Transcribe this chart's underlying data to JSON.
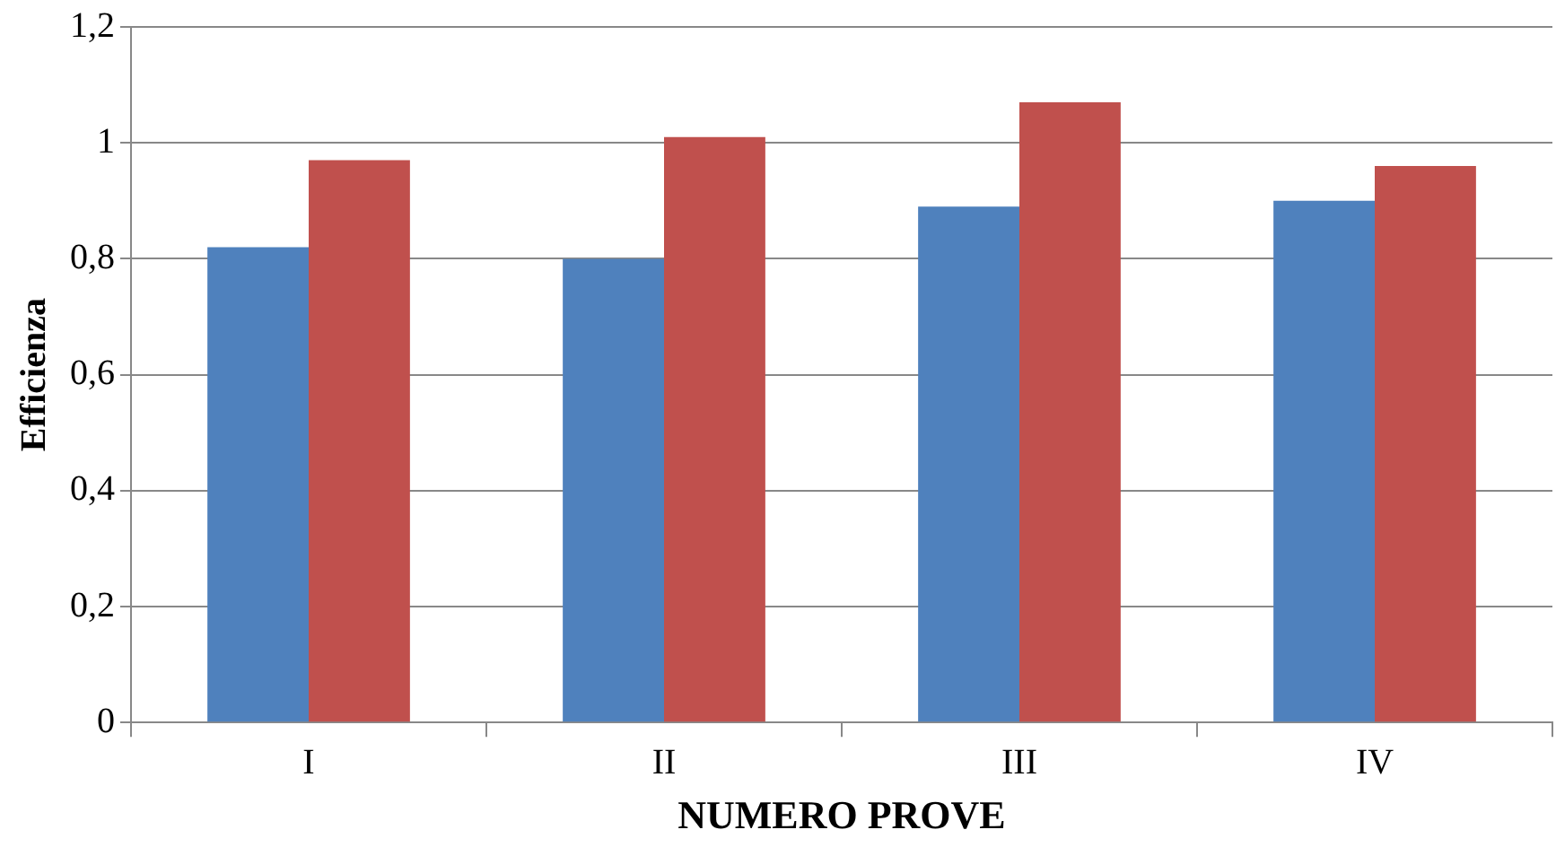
{
  "chart_data": {
    "type": "bar",
    "xlabel": "NUMERO PROVE",
    "ylabel": "Efficienza",
    "categories": [
      "I",
      "II",
      "III",
      "IV"
    ],
    "series": [
      {
        "color": "#4f81bd",
        "values": [
          0.82,
          0.8,
          0.89,
          0.9
        ]
      },
      {
        "color": "#c0504d",
        "values": [
          0.97,
          1.01,
          1.07,
          0.96
        ]
      }
    ],
    "ylim": [
      0,
      1.2
    ],
    "yticks": [
      0,
      {
        "value": 0.2,
        "label": "0,2"
      },
      {
        "value": 0.4,
        "label": "0,4"
      },
      {
        "value": 0.6,
        "label": "0,6"
      },
      {
        "value": 0.8,
        "label": "0,8"
      },
      1,
      {
        "value": 1.2,
        "label": "1,2"
      }
    ],
    "grid": "y",
    "legend": false
  }
}
